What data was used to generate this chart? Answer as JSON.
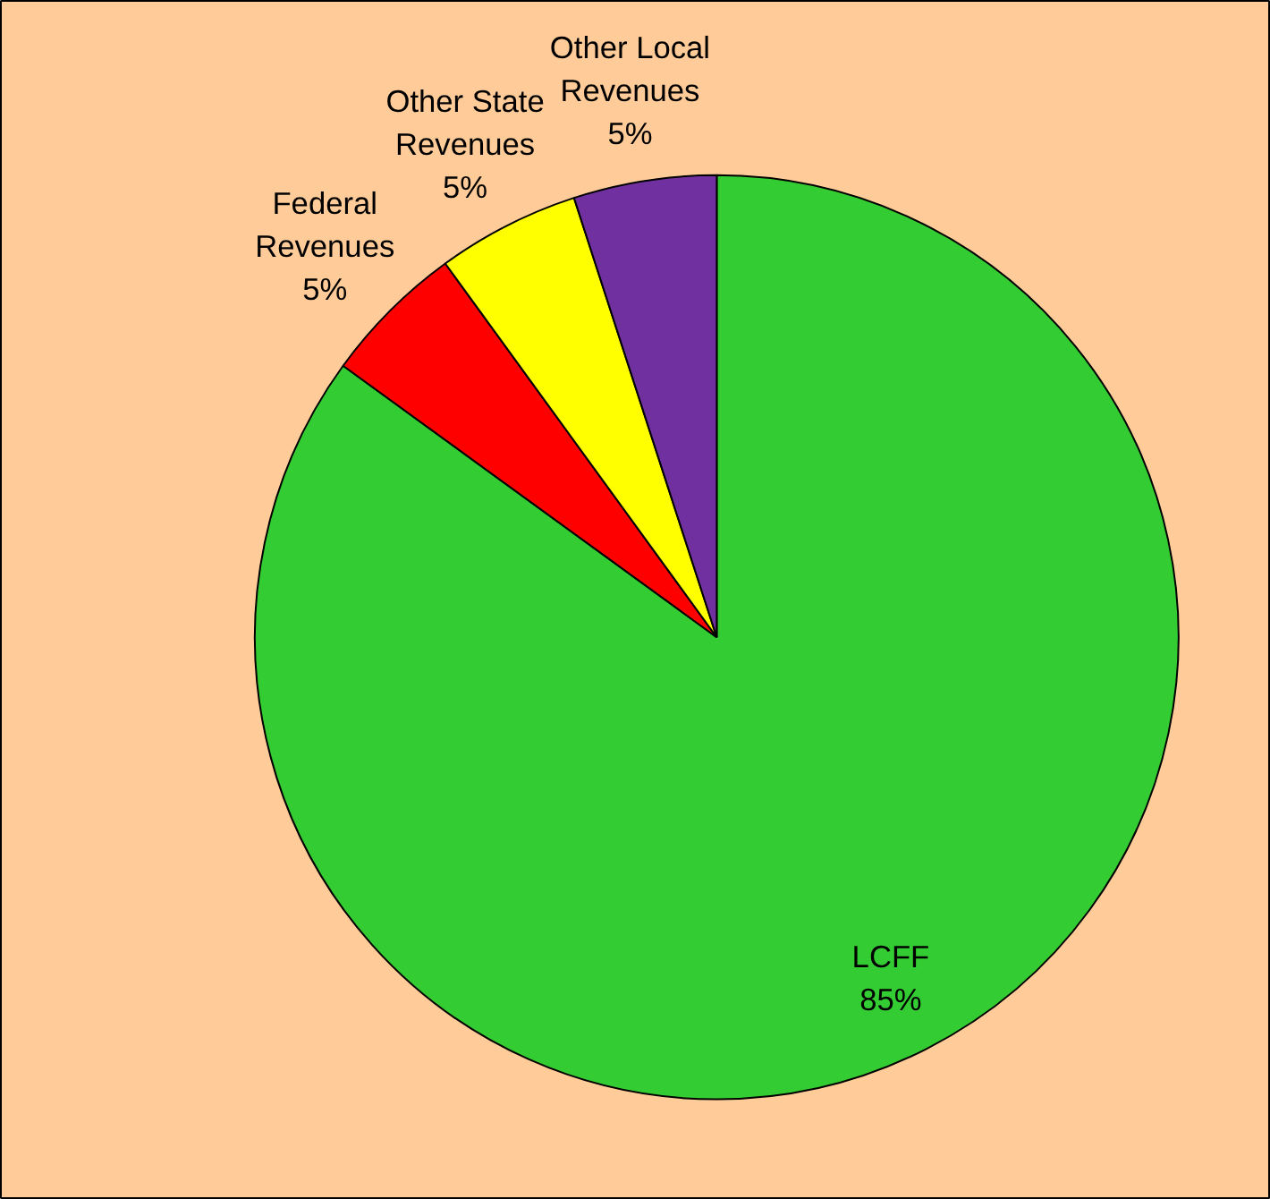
{
  "chart_data": {
    "type": "pie",
    "categories": [
      "LCFF",
      "Federal Revenues",
      "Other State Revenues",
      "Other Local Revenues"
    ],
    "values": [
      85,
      5,
      5,
      5
    ],
    "colors": [
      "#33cc33",
      "#ff0000",
      "#ffff00",
      "#7030a0"
    ],
    "value_labels": [
      "85%",
      "5%",
      "5%",
      "5%"
    ]
  }
}
